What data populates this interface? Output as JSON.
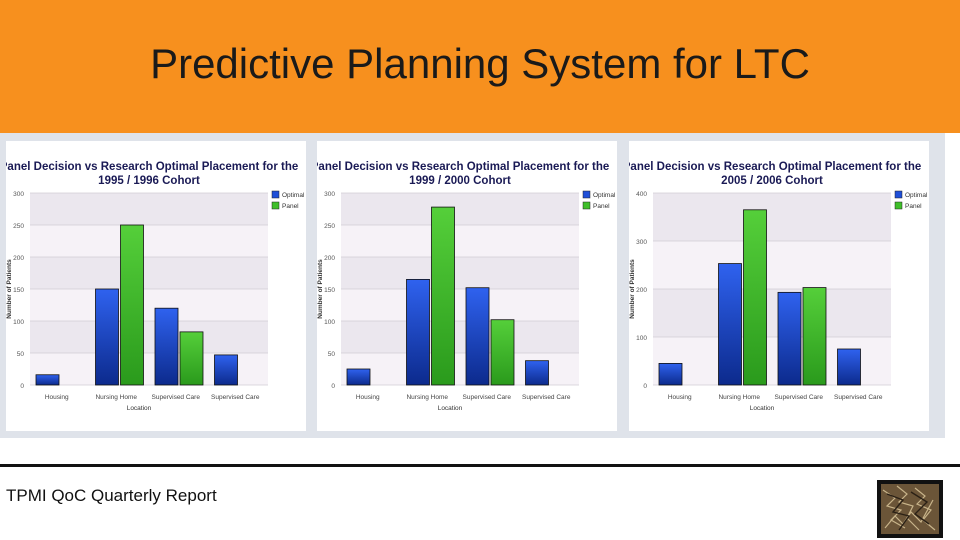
{
  "slide": {
    "title": "Predictive Planning System for LTC",
    "footer": "TPMI QoC Quarterly Report"
  },
  "colors": {
    "header_bg": "#f7901e",
    "optimal": "#1f4fd8",
    "panel": "#3fbf2a"
  },
  "chart_data": [
    {
      "type": "bar",
      "title": [
        "Panel Decision vs Research Optimal Placement for the",
        "1995 / 1996 Cohort"
      ],
      "xlabel": "Location",
      "ylabel": "Number of Patients",
      "categories": [
        "Housing",
        "Nursing Home",
        "Supervised Care",
        "Supervised Care"
      ],
      "series": [
        {
          "name": "Optimal",
          "values": [
            16,
            150,
            120,
            47
          ]
        },
        {
          "name": "Panel",
          "values": [
            null,
            250,
            83,
            null
          ]
        }
      ],
      "ylim": [
        0,
        300
      ],
      "yticks": [
        0,
        50,
        100,
        150,
        200,
        250,
        300
      ],
      "grid": true,
      "legend": "top-right"
    },
    {
      "type": "bar",
      "title": [
        "Panel Decision vs Research Optimal Placement for the",
        "1999 / 2000 Cohort"
      ],
      "xlabel": "Location",
      "ylabel": "Number of Patients",
      "categories": [
        "Housing",
        "Nursing Home",
        "Supervised Care",
        "Supervised Care"
      ],
      "series": [
        {
          "name": "Optimal",
          "values": [
            25,
            165,
            152,
            38
          ]
        },
        {
          "name": "Panel",
          "values": [
            null,
            278,
            102,
            null
          ]
        }
      ],
      "ylim": [
        0,
        300
      ],
      "yticks": [
        0,
        50,
        100,
        150,
        200,
        250,
        300
      ],
      "grid": true,
      "legend": "top-right"
    },
    {
      "type": "bar",
      "title": [
        "Panel Decision vs Research Optimal Placement for the",
        "2005 / 2006 Cohort"
      ],
      "xlabel": "Location",
      "ylabel": "Number of Patients",
      "categories": [
        "Housing",
        "Nursing Home",
        "Supervised Care",
        "Supervised Care"
      ],
      "series": [
        {
          "name": "Optimal",
          "values": [
            45,
            253,
            193,
            75
          ]
        },
        {
          "name": "Panel",
          "values": [
            null,
            365,
            203,
            null
          ]
        }
      ],
      "ylim": [
        0,
        400
      ],
      "yticks": [
        0,
        100,
        200,
        300,
        400
      ],
      "grid": true,
      "legend": "top-right"
    }
  ]
}
